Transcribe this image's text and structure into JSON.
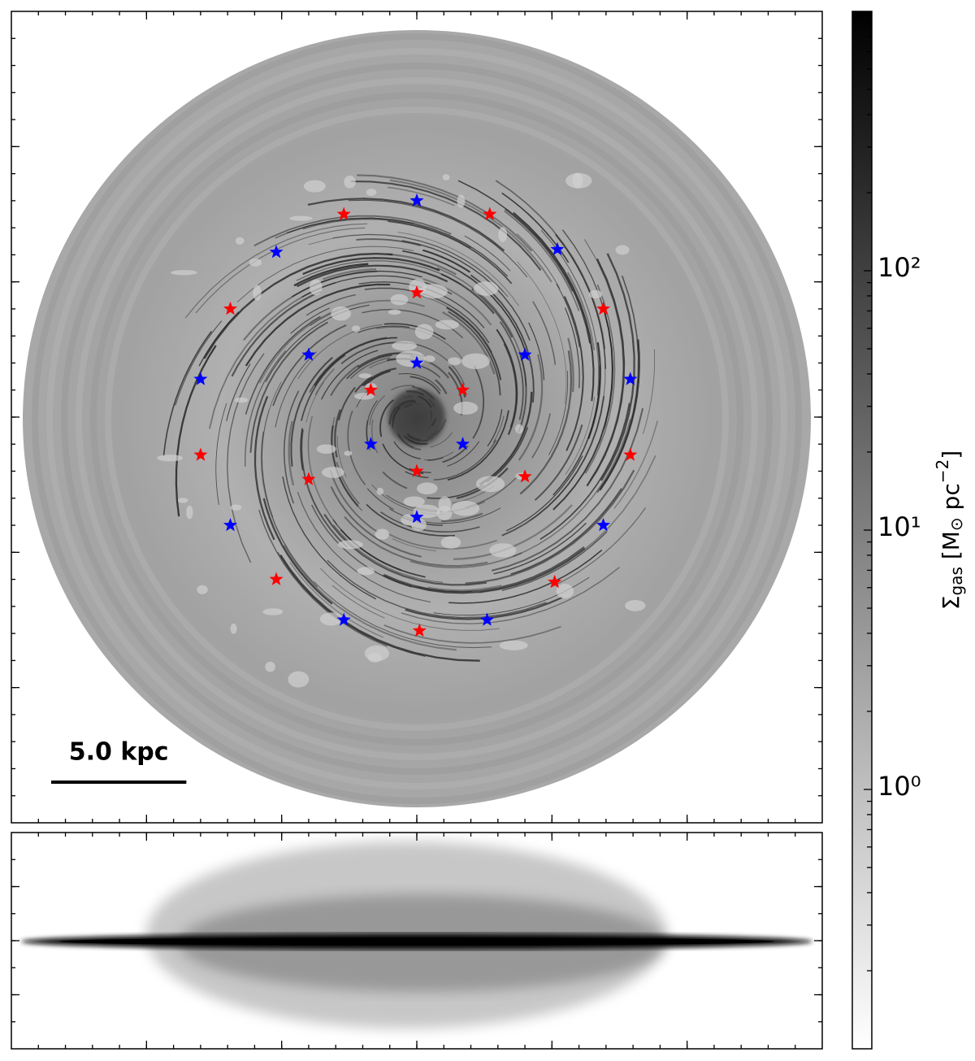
{
  "chart_data": {
    "type": "scatter",
    "face_on": {
      "xlim": [
        -15,
        15
      ],
      "ylim": [
        -15,
        15
      ],
      "xticks": [
        -10,
        -5,
        0,
        5,
        10
      ],
      "yticks": [
        -10,
        -5,
        0,
        5,
        10
      ],
      "series": [
        {
          "color": "#ff0000",
          "x": [
            -2.7,
            2.7,
            -6.9,
            6.9,
            0,
            -1.7,
            1.7,
            -8.0,
            7.9,
            -4.0,
            4.0,
            0,
            -5.2,
            5.1,
            0.1
          ],
          "y": [
            7.5,
            7.5,
            4.0,
            4.0,
            4.6,
            1.0,
            1.0,
            -1.4,
            -1.4,
            -2.3,
            -2.2,
            -2.0,
            -6.0,
            -6.1,
            -7.9
          ]
        },
        {
          "color": "#0000ff",
          "x": [
            0,
            -5.2,
            5.2,
            -4.0,
            4.0,
            0,
            -8.0,
            7.9,
            -1.7,
            1.7,
            -6.9,
            6.9,
            0,
            -2.7,
            2.6
          ],
          "y": [
            8.0,
            6.1,
            6.2,
            2.3,
            2.3,
            2.0,
            1.4,
            1.4,
            -1.0,
            -1.0,
            -4.0,
            -4.0,
            -3.7,
            -7.5,
            -7.5
          ]
        }
      ],
      "scale_bar": {
        "label": "5.0 kpc",
        "length": 5
      }
    },
    "edge_on": {
      "xlim": [
        -15,
        15
      ],
      "ylim": [
        -4,
        4
      ],
      "xticks": [
        -10,
        -5,
        0,
        5,
        10
      ],
      "yticks": [
        -2,
        0,
        2
      ]
    },
    "colorbar": {
      "scale": "log",
      "colormap": "gray_r",
      "clim": [
        0.1,
        1000
      ],
      "ticks": [
        {
          "value": 1,
          "label": "10⁰"
        },
        {
          "value": 10,
          "label": "10¹"
        },
        {
          "value": 100,
          "label": "10²"
        }
      ],
      "label_parts": [
        "Σ",
        "gas",
        " [M",
        "⊙",
        " pc",
        "−2",
        "]"
      ]
    }
  }
}
